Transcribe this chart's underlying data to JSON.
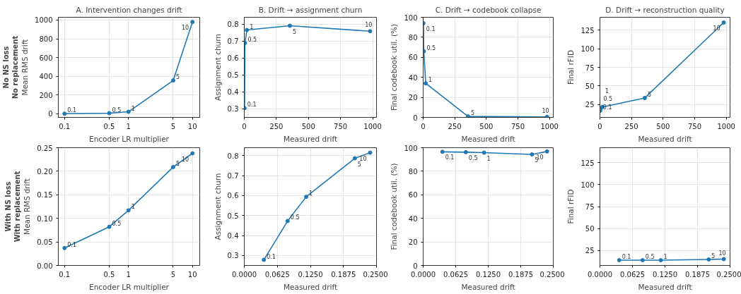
{
  "chart_data": [
    {
      "type": "line",
      "title": "A. Intervention changes drift",
      "xlabel": "Encoder LR multiplier",
      "ylabel": "Mean RMS drift",
      "log": "x",
      "grid": true,
      "marker": "circle",
      "line_style": "solid",
      "x": [
        0.1,
        0.5,
        1,
        5,
        10
      ],
      "values": [
        0,
        5,
        20,
        355,
        980
      ],
      "color": "#1f77b4",
      "xlim": [
        0.08,
        13
      ],
      "xticks": [
        0.1,
        0.5,
        1,
        5,
        10
      ],
      "ylim": [
        -40,
        1030
      ],
      "yticks": [
        0,
        200,
        400,
        600,
        800,
        1000
      ],
      "annotations": [
        "No NS loss",
        "No replacement",
        {
          "text": "0.1",
          "x": 0.1,
          "y": 0
        },
        {
          "text": "0.5",
          "x": 0.5,
          "y": 5
        },
        {
          "text": "1",
          "x": 1,
          "y": 20
        },
        {
          "text": "5",
          "x": 5,
          "y": 355
        },
        {
          "text": "10",
          "x": 10,
          "y": 980
        }
      ]
    },
    {
      "type": "line",
      "title": "B. Drift → assignment churn",
      "xlabel": "Measured drift",
      "ylabel": "Assignment churn",
      "grid": true,
      "marker": "circle",
      "line_style": "solid",
      "x": [
        2,
        5,
        20,
        355,
        980
      ],
      "values": [
        0.305,
        0.688,
        0.765,
        0.79,
        0.758
      ],
      "color": "#1f77b4",
      "xlim": [
        0,
        1030
      ],
      "xticks": [
        0,
        250,
        500,
        750,
        1000
      ],
      "ylim": [
        0.25,
        0.84
      ],
      "yticks": [
        0.3,
        0.4,
        0.5,
        0.6,
        0.7,
        0.8
      ],
      "annotations": [
        {
          "text": "0.1",
          "x": 2,
          "y": 0.305
        },
        {
          "text": "0.5",
          "x": 5,
          "y": 0.688
        },
        {
          "text": "1",
          "x": 20,
          "y": 0.765
        },
        {
          "text": "5",
          "x": 355,
          "y": 0.79
        },
        {
          "text": "10",
          "x": 980,
          "y": 0.758
        }
      ]
    },
    {
      "type": "line",
      "title": "C. Drift → codebook collapse",
      "xlabel": "Measured drift",
      "ylabel": "Final codebook util. (%)",
      "grid": true,
      "marker": "circle",
      "line_style": "solid",
      "x": [
        2,
        5,
        20,
        355,
        980
      ],
      "values": [
        94,
        66,
        34,
        1,
        0.5
      ],
      "color": "#1f77b4",
      "xlim": [
        0,
        1030
      ],
      "xticks": [
        0,
        250,
        500,
        750,
        1000
      ],
      "ylim": [
        0,
        100
      ],
      "yticks": [
        0,
        20,
        40,
        60,
        80,
        100
      ],
      "annotations": [
        {
          "text": "0.1",
          "x": 2,
          "y": 94
        },
        {
          "text": "0.5",
          "x": 5,
          "y": 66
        },
        {
          "text": "1",
          "x": 20,
          "y": 34
        },
        {
          "text": "5",
          "x": 355,
          "y": 1
        },
        {
          "text": "10",
          "x": 980,
          "y": 0.5
        }
      ]
    },
    {
      "type": "line",
      "title": "D. Drift → reconstruction quality",
      "xlabel": "Measured drift",
      "ylabel": "Final rFID",
      "grid": true,
      "marker": "circle",
      "line_style": "solid",
      "x": [
        2,
        5,
        20,
        355,
        980
      ],
      "values": [
        17,
        20,
        22,
        34,
        135
      ],
      "color": "#1f77b4",
      "xlim": [
        0,
        1030
      ],
      "xticks": [
        0,
        250,
        500,
        750,
        1000
      ],
      "ylim": [
        8,
        142
      ],
      "yticks": [
        25,
        50,
        75,
        100,
        125
      ],
      "annotations": [
        {
          "text": "0.1",
          "x": 2,
          "y": 17
        },
        {
          "text": "0.5",
          "x": 5,
          "y": 20
        },
        {
          "text": "1",
          "x": 20,
          "y": 22
        },
        {
          "text": "5",
          "x": 355,
          "y": 34
        },
        {
          "text": "10",
          "x": 980,
          "y": 135
        }
      ]
    },
    {
      "type": "line",
      "xlabel": "Encoder LR multiplier",
      "ylabel": "Mean RMS drift",
      "log": "x",
      "grid": true,
      "marker": "circle",
      "line_style": "solid",
      "x": [
        0.1,
        0.5,
        1,
        5,
        10
      ],
      "values": [
        0.037,
        0.082,
        0.117,
        0.209,
        0.238
      ],
      "color": "#1f77b4",
      "xlim": [
        0.08,
        13
      ],
      "xticks": [
        0.1,
        0.5,
        1,
        5,
        10
      ],
      "ylim": [
        0,
        0.25
      ],
      "yticks": [
        {
          "value": 0,
          "label": "0.00"
        },
        {
          "value": 0.05,
          "label": "0.05"
        },
        {
          "value": 0.1,
          "label": "0.10"
        },
        {
          "value": 0.15,
          "label": "0.15"
        },
        {
          "value": 0.2,
          "label": "0.20"
        },
        {
          "value": 0.25,
          "label": "0.25"
        }
      ],
      "annotations": [
        "With NS loss",
        "With replacement",
        {
          "text": "0.1",
          "x": 0.1,
          "y": 0.037
        },
        {
          "text": "0.5",
          "x": 0.5,
          "y": 0.082
        },
        {
          "text": "1",
          "x": 1,
          "y": 0.117
        },
        {
          "text": "5",
          "x": 5,
          "y": 0.209
        },
        {
          "text": "10",
          "x": 10,
          "y": 0.238
        }
      ]
    },
    {
      "type": "line",
      "xlabel": "Measured drift",
      "ylabel": "Assignment churn",
      "grid": true,
      "marker": "circle",
      "line_style": "solid",
      "x": [
        0.037,
        0.082,
        0.117,
        0.209,
        0.238
      ],
      "values": [
        0.278,
        0.473,
        0.594,
        0.787,
        0.815
      ],
      "color": "#1f77b4",
      "xlim": [
        0,
        0.25
      ],
      "xticks": [
        {
          "value": 0,
          "label": "0.0000"
        },
        {
          "value": 0.0625,
          "label": "0.0625"
        },
        {
          "value": 0.125,
          "label": "0.1250"
        },
        {
          "value": 0.1875,
          "label": "0.1875"
        },
        {
          "value": 0.25,
          "label": "0.2500"
        }
      ],
      "ylim": [
        0.25,
        0.84
      ],
      "yticks": [
        0.3,
        0.4,
        0.5,
        0.6,
        0.7,
        0.8
      ],
      "annotations": [
        {
          "text": "0.1",
          "x": 0.037,
          "y": 0.278
        },
        {
          "text": "0.5",
          "x": 0.082,
          "y": 0.473
        },
        {
          "text": "1",
          "x": 0.117,
          "y": 0.594
        },
        {
          "text": "5",
          "x": 0.209,
          "y": 0.787
        },
        {
          "text": "10",
          "x": 0.238,
          "y": 0.815
        }
      ]
    },
    {
      "type": "line",
      "xlabel": "Measured drift",
      "ylabel": "Final codebook util. (%)",
      "grid": true,
      "marker": "circle",
      "line_style": "solid",
      "x": [
        0.037,
        0.082,
        0.117,
        0.209,
        0.238
      ],
      "values": [
        96.5,
        96.2,
        95.8,
        94.3,
        96.8
      ],
      "color": "#1f77b4",
      "xlim": [
        0,
        0.25
      ],
      "xticks": [
        {
          "value": 0,
          "label": "0.0000"
        },
        {
          "value": 0.0625,
          "label": "0.0625"
        },
        {
          "value": 0.125,
          "label": "0.1250"
        },
        {
          "value": 0.1875,
          "label": "0.1875"
        },
        {
          "value": 0.25,
          "label": "0.2500"
        }
      ],
      "ylim": [
        0,
        100
      ],
      "yticks": [
        0,
        20,
        40,
        60,
        80,
        100
      ],
      "annotations": [
        {
          "text": "0.1",
          "x": 0.037,
          "y": 96.5
        },
        {
          "text": "0.5",
          "x": 0.082,
          "y": 96.2
        },
        {
          "text": "1",
          "x": 0.117,
          "y": 95.8
        },
        {
          "text": "5",
          "x": 0.209,
          "y": 94.3
        },
        {
          "text": "10",
          "x": 0.238,
          "y": 96.8
        }
      ]
    },
    {
      "type": "line",
      "xlabel": "Measured drift",
      "ylabel": "Final rFID",
      "grid": true,
      "marker": "circle",
      "line_style": "solid",
      "x": [
        0.037,
        0.082,
        0.117,
        0.209,
        0.238
      ],
      "values": [
        14,
        14,
        14,
        14.8,
        15.2
      ],
      "color": "#1f77b4",
      "xlim": [
        0,
        0.25
      ],
      "xticks": [
        {
          "value": 0,
          "label": "0.0000"
        },
        {
          "value": 0.0625,
          "label": "0.0625"
        },
        {
          "value": 0.125,
          "label": "0.1250"
        },
        {
          "value": 0.1875,
          "label": "0.1875"
        },
        {
          "value": 0.25,
          "label": "0.2500"
        }
      ],
      "ylim": [
        8,
        142
      ],
      "yticks": [
        25,
        50,
        75,
        100,
        125
      ],
      "annotations": [
        {
          "text": "0.1",
          "x": 0.037,
          "y": 14
        },
        {
          "text": "0.5",
          "x": 0.082,
          "y": 14
        },
        {
          "text": "1",
          "x": 0.117,
          "y": 14
        },
        {
          "text": "5",
          "x": 0.209,
          "y": 14.8
        },
        {
          "text": "10",
          "x": 0.238,
          "y": 15.2
        }
      ]
    }
  ]
}
